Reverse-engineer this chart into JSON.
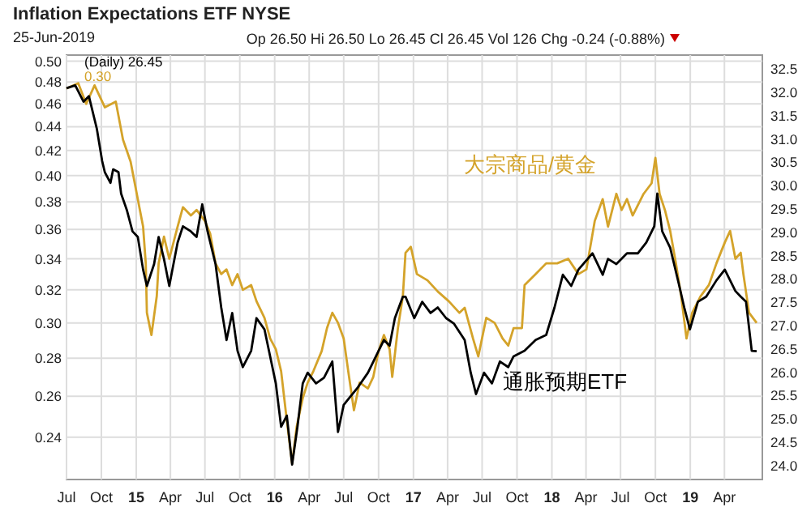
{
  "chart_data": {
    "type": "line",
    "title": "Inflation Expectations ETF NYSE",
    "subtitle": "25-Jun-2019",
    "annotations": [
      "Op 26.50 Hi 26.50 Lo 26.45 Cl 26.45 Vol 126 Chg -0.24 (-0.88%)",
      "(Daily) 26.45",
      "0.30"
    ],
    "log": "y",
    "grid": true,
    "xlim": [
      "2014-07-01",
      "2019-07-10"
    ],
    "xticks": [
      {
        "value": "2014-07-01",
        "label": "Jul"
      },
      {
        "value": "2014-10-01",
        "label": "Oct"
      },
      {
        "value": "2015-01-01",
        "label": "15"
      },
      {
        "value": "2015-04-01",
        "label": "Apr"
      },
      {
        "value": "2015-07-01",
        "label": "Jul"
      },
      {
        "value": "2015-10-01",
        "label": "Oct"
      },
      {
        "value": "2016-01-01",
        "label": "16"
      },
      {
        "value": "2016-04-01",
        "label": "Apr"
      },
      {
        "value": "2016-07-01",
        "label": "Jul"
      },
      {
        "value": "2016-10-01",
        "label": "Oct"
      },
      {
        "value": "2017-01-01",
        "label": "17"
      },
      {
        "value": "2017-04-01",
        "label": "Apr"
      },
      {
        "value": "2017-07-01",
        "label": "Jul"
      },
      {
        "value": "2017-10-01",
        "label": "Oct"
      },
      {
        "value": "2018-01-01",
        "label": "18"
      },
      {
        "value": "2018-04-01",
        "label": "Apr"
      },
      {
        "value": "2018-07-01",
        "label": "Jul"
      },
      {
        "value": "2018-10-01",
        "label": "Oct"
      },
      {
        "value": "2019-01-01",
        "label": "19"
      },
      {
        "value": "2019-04-01",
        "label": "Apr"
      }
    ],
    "ylim": [
      0.221,
      0.506
    ],
    "yticks": [
      {
        "value": 0.24,
        "label": "0.24"
      },
      {
        "value": 0.26,
        "label": "0.26"
      },
      {
        "value": 0.28,
        "label": "0.28"
      },
      {
        "value": 0.3,
        "label": "0.30"
      },
      {
        "value": 0.32,
        "label": "0.32"
      },
      {
        "value": 0.34,
        "label": "0.34"
      },
      {
        "value": 0.36,
        "label": "0.36"
      },
      {
        "value": 0.38,
        "label": "0.38"
      },
      {
        "value": 0.4,
        "label": "0.40"
      },
      {
        "value": 0.42,
        "label": "0.42"
      },
      {
        "value": 0.44,
        "label": "0.44"
      },
      {
        "value": 0.46,
        "label": "0.46"
      },
      {
        "value": 0.48,
        "label": "0.48"
      },
      {
        "value": 0.5,
        "label": "0.50"
      }
    ],
    "y2lim": [
      23.7,
      32.8
    ],
    "y2ticks": [
      {
        "value": 24,
        "label": "24.0"
      },
      {
        "value": 24.5,
        "label": "24.5"
      },
      {
        "value": 25,
        "label": "25.0"
      },
      {
        "value": 25.5,
        "label": "25.5"
      },
      {
        "value": 26,
        "label": "26.0"
      },
      {
        "value": 26.5,
        "label": "26.5"
      },
      {
        "value": 27,
        "label": "27.0"
      },
      {
        "value": 27.5,
        "label": "27.5"
      },
      {
        "value": 28,
        "label": "28.0"
      },
      {
        "value": 28.5,
        "label": "28.5"
      },
      {
        "value": 29,
        "label": "29.0"
      },
      {
        "value": 29.5,
        "label": "29.5"
      },
      {
        "value": 30,
        "label": "30.0"
      },
      {
        "value": 30.5,
        "label": "30.5"
      },
      {
        "value": 31,
        "label": "31.0"
      },
      {
        "value": 31.5,
        "label": "31.5"
      },
      {
        "value": 32,
        "label": "32.0"
      },
      {
        "value": 32.5,
        "label": "32.5"
      }
    ],
    "series": [
      {
        "name": "大宗商品/黄金",
        "color": "#d4a32a",
        "x": [
          "2014-07-01",
          "2014-08-01",
          "2014-08-22",
          "2014-09-13",
          "2014-10-10",
          "2014-11-08",
          "2014-11-27",
          "2014-12-17",
          "2015-01-05",
          "2015-01-19",
          "2015-01-26",
          "2015-01-29",
          "2015-02-10",
          "2015-02-24",
          "2015-03-01",
          "2015-03-15",
          "2015-03-29",
          "2015-04-20",
          "2015-05-04",
          "2015-05-25",
          "2015-06-09",
          "2015-07-01",
          "2015-07-15",
          "2015-07-29",
          "2015-08-13",
          "2015-08-27",
          "2015-09-11",
          "2015-09-25",
          "2015-10-09",
          "2015-10-31",
          "2015-11-14",
          "2015-12-05",
          "2015-12-20",
          "2016-01-04",
          "2016-01-18",
          "2016-02-02",
          "2016-02-16",
          "2016-02-28",
          "2016-03-15",
          "2016-03-28",
          "2016-04-12",
          "2016-05-04",
          "2016-05-18",
          "2016-06-01",
          "2016-06-16",
          "2016-07-01",
          "2016-07-13",
          "2016-07-28",
          "2016-08-12",
          "2016-09-03",
          "2016-09-17",
          "2016-10-01",
          "2016-10-15",
          "2016-10-30",
          "2016-11-06",
          "2016-11-21",
          "2016-12-04",
          "2016-12-11",
          "2016-12-25",
          "2017-01-10",
          "2017-02-07",
          "2017-03-06",
          "2017-04-04",
          "2017-05-02",
          "2017-05-16",
          "2017-06-07",
          "2017-06-21",
          "2017-07-12",
          "2017-08-03",
          "2017-08-24",
          "2017-09-08",
          "2017-09-22",
          "2017-10-14",
          "2017-10-21",
          "2017-11-19",
          "2017-12-17",
          "2018-01-15",
          "2018-02-13",
          "2018-03-12",
          "2018-04-02",
          "2018-04-24",
          "2018-05-15",
          "2018-05-29",
          "2018-06-20",
          "2018-07-04",
          "2018-07-18",
          "2018-08-02",
          "2018-08-31",
          "2018-09-21",
          "2018-10-01",
          "2018-10-12",
          "2018-10-26",
          "2018-11-09",
          "2018-11-24",
          "2018-12-08",
          "2018-12-22",
          "2019-01-06",
          "2019-01-28",
          "2019-02-19",
          "2019-03-11",
          "2019-04-02",
          "2019-04-16",
          "2019-04-30",
          "2019-05-14",
          "2019-05-21",
          "2019-06-05",
          "2019-06-25"
        ],
        "values": [
          0.474,
          0.479,
          0.46,
          0.477,
          0.457,
          0.462,
          0.429,
          0.411,
          0.382,
          0.362,
          0.337,
          0.306,
          0.293,
          0.316,
          0.337,
          0.355,
          0.34,
          0.362,
          0.376,
          0.37,
          0.374,
          0.366,
          0.357,
          0.337,
          0.33,
          0.333,
          0.323,
          0.33,
          0.32,
          0.323,
          0.313,
          0.303,
          0.291,
          0.285,
          0.273,
          0.248,
          0.228,
          0.245,
          0.259,
          0.267,
          0.273,
          0.284,
          0.297,
          0.306,
          0.3,
          0.291,
          0.273,
          0.253,
          0.267,
          0.264,
          0.27,
          0.284,
          0.293,
          0.285,
          0.27,
          0.297,
          0.316,
          0.344,
          0.348,
          0.33,
          0.326,
          0.319,
          0.313,
          0.306,
          0.309,
          0.291,
          0.281,
          0.303,
          0.3,
          0.291,
          0.287,
          0.297,
          0.297,
          0.323,
          0.33,
          0.337,
          0.337,
          0.34,
          0.33,
          0.333,
          0.366,
          0.382,
          0.362,
          0.386,
          0.374,
          0.382,
          0.37,
          0.386,
          0.394,
          0.414,
          0.386,
          0.374,
          0.359,
          0.337,
          0.316,
          0.291,
          0.306,
          0.316,
          0.323,
          0.337,
          0.351,
          0.359,
          0.34,
          0.344,
          0.33,
          0.306,
          0.3
        ]
      },
      {
        "name": "通胀预期ETF",
        "color": "#000000",
        "axis": "y2",
        "x": [
          "2014-07-01",
          "2014-07-24",
          "2014-08-15",
          "2014-08-29",
          "2014-09-19",
          "2014-10-03",
          "2014-10-10",
          "2014-10-25",
          "2014-11-01",
          "2014-11-15",
          "2014-11-22",
          "2014-12-07",
          "2014-12-22",
          "2015-01-05",
          "2015-01-19",
          "2015-01-29",
          "2015-02-17",
          "2015-03-01",
          "2015-03-15",
          "2015-03-29",
          "2015-04-20",
          "2015-05-04",
          "2015-05-25",
          "2015-06-09",
          "2015-06-24",
          "2015-07-08",
          "2015-07-29",
          "2015-08-13",
          "2015-08-27",
          "2015-09-11",
          "2015-09-25",
          "2015-10-09",
          "2015-10-31",
          "2015-11-14",
          "2015-12-05",
          "2015-12-20",
          "2016-01-04",
          "2016-01-18",
          "2016-02-02",
          "2016-02-16",
          "2016-03-01",
          "2016-03-15",
          "2016-03-28",
          "2016-04-19",
          "2016-05-10",
          "2016-06-01",
          "2016-06-16",
          "2016-07-01",
          "2016-07-13",
          "2016-08-05",
          "2016-09-03",
          "2016-09-24",
          "2016-10-15",
          "2016-10-30",
          "2016-11-13",
          "2016-12-04",
          "2016-12-11",
          "2017-01-03",
          "2017-01-24",
          "2017-02-15",
          "2017-03-06",
          "2017-03-28",
          "2017-04-18",
          "2017-05-16",
          "2017-06-01",
          "2017-06-15",
          "2017-07-06",
          "2017-07-27",
          "2017-08-17",
          "2017-09-08",
          "2017-09-22",
          "2017-10-21",
          "2017-11-19",
          "2017-12-17",
          "2018-01-08",
          "2018-01-30",
          "2018-02-21",
          "2018-03-12",
          "2018-04-18",
          "2018-05-15",
          "2018-05-29",
          "2018-06-20",
          "2018-07-18",
          "2018-08-16",
          "2018-09-07",
          "2018-09-28",
          "2018-10-06",
          "2018-10-19",
          "2018-11-09",
          "2018-12-03",
          "2018-12-16",
          "2018-12-31",
          "2019-01-21",
          "2019-02-12",
          "2019-03-11",
          "2019-04-02",
          "2019-04-16",
          "2019-04-30",
          "2019-05-14",
          "2019-05-28",
          "2019-06-12",
          "2019-06-25"
        ],
        "values": [
          32.09,
          32.15,
          31.8,
          31.92,
          31.22,
          30.53,
          30.29,
          30.06,
          30.35,
          30.29,
          29.83,
          29.48,
          29.02,
          28.9,
          28.2,
          27.85,
          28.32,
          28.9,
          28.43,
          27.85,
          28.78,
          29.13,
          29.02,
          28.9,
          29.6,
          29.02,
          28.32,
          27.39,
          26.69,
          27.27,
          26.46,
          26.11,
          26.46,
          27.16,
          26.92,
          26.34,
          25.76,
          24.83,
          25.07,
          24.02,
          24.83,
          25.76,
          25.99,
          25.76,
          25.88,
          26.23,
          24.72,
          25.3,
          25.42,
          25.65,
          25.99,
          26.34,
          26.69,
          26.57,
          27.16,
          27.62,
          27.62,
          27.16,
          27.51,
          27.27,
          27.39,
          27.16,
          27.04,
          26.69,
          25.99,
          25.53,
          25.99,
          25.76,
          26.23,
          26.11,
          26.34,
          26.46,
          26.69,
          26.8,
          27.39,
          28.09,
          27.85,
          28.2,
          28.55,
          28.09,
          28.43,
          28.32,
          28.55,
          28.55,
          28.78,
          29.13,
          29.83,
          29.02,
          28.67,
          27.85,
          27.39,
          26.92,
          27.51,
          27.62,
          27.97,
          28.2,
          27.97,
          27.74,
          27.62,
          27.51,
          26.46,
          26.45
        ]
      }
    ]
  }
}
